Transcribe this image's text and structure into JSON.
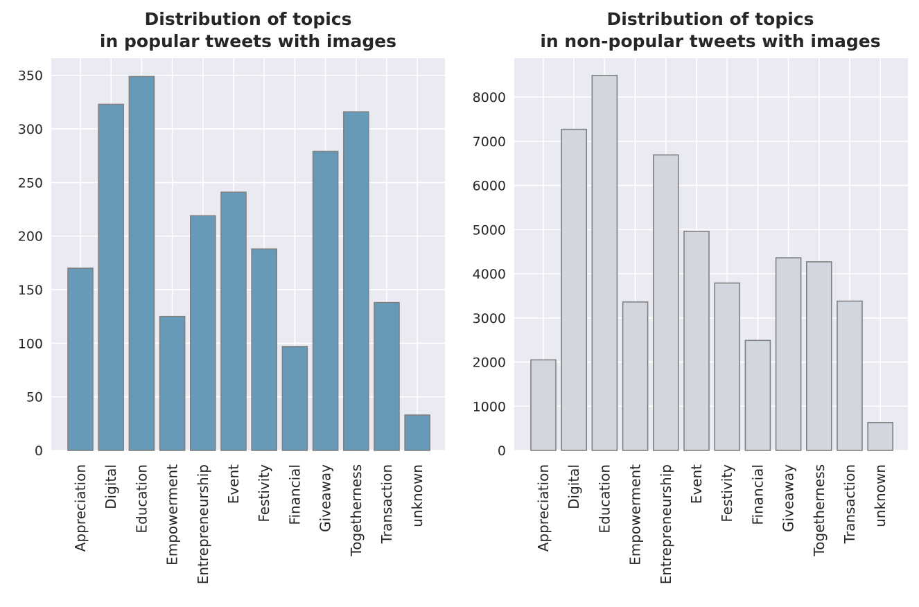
{
  "chart_data": [
    {
      "type": "bar",
      "title_lines": [
        "Distribution of topics",
        "in popular tweets with images"
      ],
      "xlabel": "",
      "ylabel": "",
      "categories": [
        "Appreciation",
        "Digital",
        "Education",
        "Empowerment",
        "Entrepreneurship",
        "Event",
        "Festivity",
        "Financial",
        "Giveaway",
        "Togetherness",
        "Transaction",
        "unknown"
      ],
      "values": [
        170,
        323,
        349,
        125,
        219,
        241,
        188,
        97,
        279,
        316,
        138,
        33
      ],
      "yticks": [
        0,
        50,
        100,
        150,
        200,
        250,
        300,
        350
      ],
      "ylim": [
        0,
        366
      ],
      "grid": true,
      "bar_color": "#6799b8",
      "edge_color": "#808080",
      "background_color": "#eaeaf2"
    },
    {
      "type": "bar",
      "title_lines": [
        "Distribution of topics",
        "in non-popular tweets with images"
      ],
      "xlabel": "",
      "ylabel": "",
      "categories": [
        "Appreciation",
        "Digital",
        "Education",
        "Empowerment",
        "Entrepreneurship",
        "Event",
        "Festivity",
        "Financial",
        "Giveaway",
        "Togetherness",
        "Transaction",
        "unknown"
      ],
      "values": [
        2050,
        7270,
        8490,
        3360,
        6690,
        4960,
        3790,
        2490,
        4360,
        4270,
        3380,
        630
      ],
      "yticks": [
        0,
        1000,
        2000,
        3000,
        4000,
        5000,
        6000,
        7000,
        8000
      ],
      "ylim": [
        0,
        8880
      ],
      "grid": true,
      "bar_color": "#d2d6de",
      "edge_color": "#808080",
      "background_color": "#eaeaf2"
    }
  ]
}
